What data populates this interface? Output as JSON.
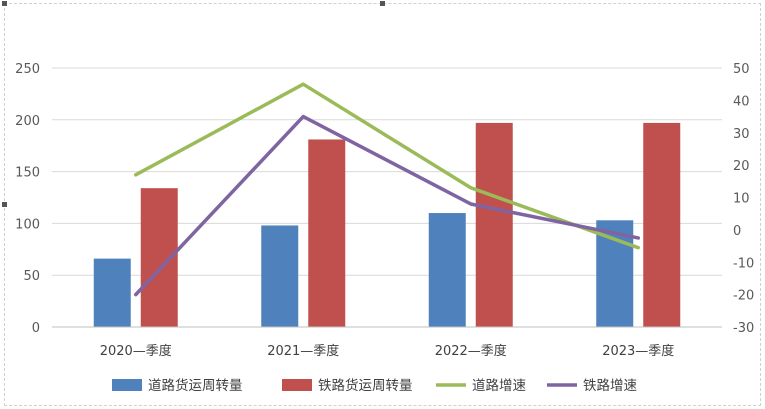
{
  "chart_data": {
    "type": "bar+line",
    "categories": [
      "2020—季度",
      "2021—季度",
      "2022—季度",
      "2023—季度"
    ],
    "bar_series": [
      {
        "name": "道路货运周转量",
        "values": [
          66,
          98,
          110,
          103
        ],
        "color": "#4F81BD"
      },
      {
        "name": "铁路货运周转量",
        "values": [
          134,
          181,
          197,
          197
        ],
        "color": "#C0504D"
      }
    ],
    "line_series": [
      {
        "name": "道路增速",
        "values": [
          17,
          45,
          13,
          -5.5
        ],
        "color": "#9BBB59"
      },
      {
        "name": "铁路增速",
        "values": [
          -20,
          35,
          8,
          -2.5
        ],
        "color": "#8064A2"
      }
    ],
    "y_left": {
      "min": 0,
      "max": 250,
      "step": 50,
      "ticks": [
        "0",
        "50",
        "100",
        "150",
        "200",
        "250"
      ]
    },
    "y_right": {
      "min": -30,
      "max": 50,
      "step": 10,
      "ticks": [
        "-30",
        "-20",
        "-10",
        "0",
        "10",
        "20",
        "30",
        "40",
        "50"
      ]
    },
    "grid": true,
    "legend_position": "bottom",
    "gridline_color": "#D9D9D9"
  }
}
